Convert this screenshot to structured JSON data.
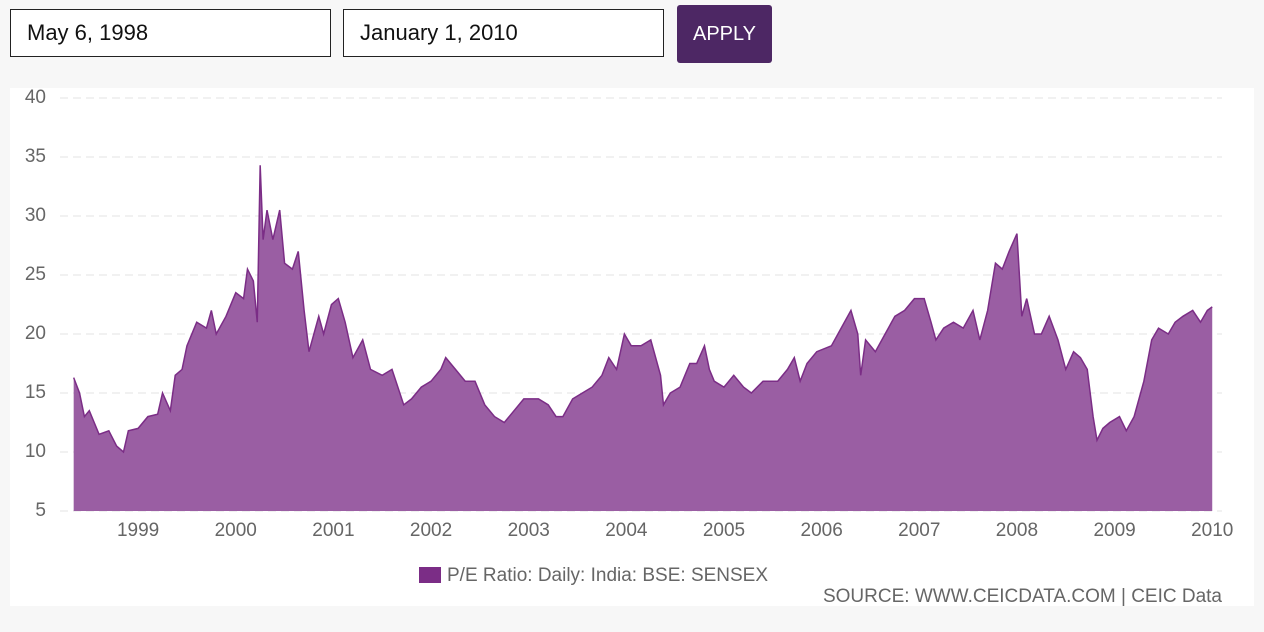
{
  "controls": {
    "start_date": "May 6, 1998",
    "end_date": "January 1, 2010",
    "apply": "APPLY"
  },
  "chart_data": {
    "type": "area",
    "x": [
      1998.34,
      1998.4,
      1998.45,
      1998.5,
      1998.55,
      1998.6,
      1998.7,
      1998.78,
      1998.85,
      1998.9,
      1999.0,
      1999.1,
      1999.2,
      1999.25,
      1999.33,
      1999.38,
      1999.45,
      1999.5,
      1999.6,
      1999.7,
      1999.75,
      1999.8,
      1999.9,
      2000.0,
      2000.08,
      2000.12,
      2000.18,
      2000.22,
      2000.25,
      2000.28,
      2000.32,
      2000.38,
      2000.45,
      2000.5,
      2000.58,
      2000.64,
      2000.7,
      2000.75,
      2000.85,
      2000.9,
      2000.98,
      2001.05,
      2001.12,
      2001.2,
      2001.3,
      2001.38,
      2001.5,
      2001.6,
      2001.72,
      2001.8,
      2001.9,
      2002.0,
      2002.1,
      2002.15,
      2002.25,
      2002.35,
      2002.45,
      2002.55,
      2002.65,
      2002.75,
      2002.85,
      2002.95,
      2003.1,
      2003.2,
      2003.28,
      2003.35,
      2003.45,
      2003.55,
      2003.65,
      2003.75,
      2003.82,
      2003.9,
      2003.98,
      2004.05,
      2004.15,
      2004.25,
      2004.35,
      2004.38,
      2004.45,
      2004.55,
      2004.65,
      2004.72,
      2004.8,
      2004.85,
      2004.9,
      2005.0,
      2005.1,
      2005.2,
      2005.28,
      2005.4,
      2005.55,
      2005.65,
      2005.72,
      2005.78,
      2005.85,
      2005.95,
      2006.1,
      2006.2,
      2006.3,
      2006.37,
      2006.4,
      2006.45,
      2006.55,
      2006.65,
      2006.75,
      2006.85,
      2006.95,
      2007.05,
      2007.12,
      2007.17,
      2007.25,
      2007.35,
      2007.45,
      2007.55,
      2007.62,
      2007.7,
      2007.78,
      2007.85,
      2007.92,
      2008.0,
      2008.05,
      2008.1,
      2008.18,
      2008.25,
      2008.33,
      2008.42,
      2008.5,
      2008.58,
      2008.65,
      2008.72,
      2008.78,
      2008.82,
      2008.88,
      2008.95,
      2009.05,
      2009.12,
      2009.2,
      2009.3,
      2009.38,
      2009.45,
      2009.55,
      2009.62,
      2009.7,
      2009.8,
      2009.88,
      2009.95,
      2010.0
    ],
    "series": [
      {
        "name": "P/E Ratio: Daily: India: BSE: SENSEX",
        "color": "#7b2d86",
        "fill": "#9a5ea3",
        "values": [
          16.3,
          15.0,
          13.0,
          13.5,
          12.5,
          11.5,
          11.8,
          10.5,
          10.0,
          11.8,
          12.0,
          13.0,
          13.2,
          15.0,
          13.5,
          16.5,
          17.0,
          19.0,
          21.0,
          20.5,
          22.0,
          20.0,
          21.5,
          23.5,
          23.0,
          25.5,
          24.5,
          21.0,
          34.3,
          28.0,
          30.5,
          28.0,
          30.5,
          26.0,
          25.5,
          27.0,
          22.0,
          18.5,
          21.5,
          20.0,
          22.5,
          23.0,
          21.0,
          18.0,
          19.5,
          17.0,
          16.5,
          17.0,
          14.0,
          14.5,
          15.5,
          16.0,
          17.0,
          18.0,
          17.0,
          16.0,
          16.0,
          14.0,
          13.0,
          12.5,
          13.5,
          14.5,
          14.5,
          14.0,
          13.0,
          13.0,
          14.5,
          15.0,
          15.5,
          16.5,
          18.0,
          17.0,
          20.0,
          19.0,
          19.0,
          19.5,
          16.5,
          14.0,
          15.0,
          15.5,
          17.5,
          17.5,
          19.0,
          17.0,
          16.0,
          15.5,
          16.5,
          15.5,
          15.0,
          16.0,
          16.0,
          17.0,
          18.0,
          16.0,
          17.5,
          18.5,
          19.0,
          20.5,
          22.0,
          20.0,
          16.5,
          19.5,
          18.5,
          20.0,
          21.5,
          22.0,
          23.0,
          23.0,
          21.0,
          19.5,
          20.5,
          21.0,
          20.5,
          22.0,
          19.5,
          22.0,
          26.0,
          25.5,
          27.0,
          28.5,
          21.5,
          23.0,
          20.0,
          20.0,
          21.5,
          19.5,
          17.0,
          18.5,
          18.0,
          17.0,
          13.0,
          11.0,
          12.0,
          12.5,
          13.0,
          11.8,
          13.0,
          16.0,
          19.5,
          20.5,
          20.0,
          21.0,
          21.5,
          22.0,
          21.0,
          22.0,
          22.3
        ]
      }
    ],
    "xlim": [
      1998.2,
      2010.1
    ],
    "xticks": [
      1999,
      2000,
      2001,
      2002,
      2003,
      2004,
      2005,
      2006,
      2007,
      2008,
      2009,
      2010
    ],
    "ylim": [
      5,
      40
    ],
    "yticks": [
      5,
      10,
      15,
      20,
      25,
      30,
      35,
      40
    ],
    "grid": true,
    "source": "SOURCE: WWW.CEICDATA.COM | CEIC Data"
  }
}
